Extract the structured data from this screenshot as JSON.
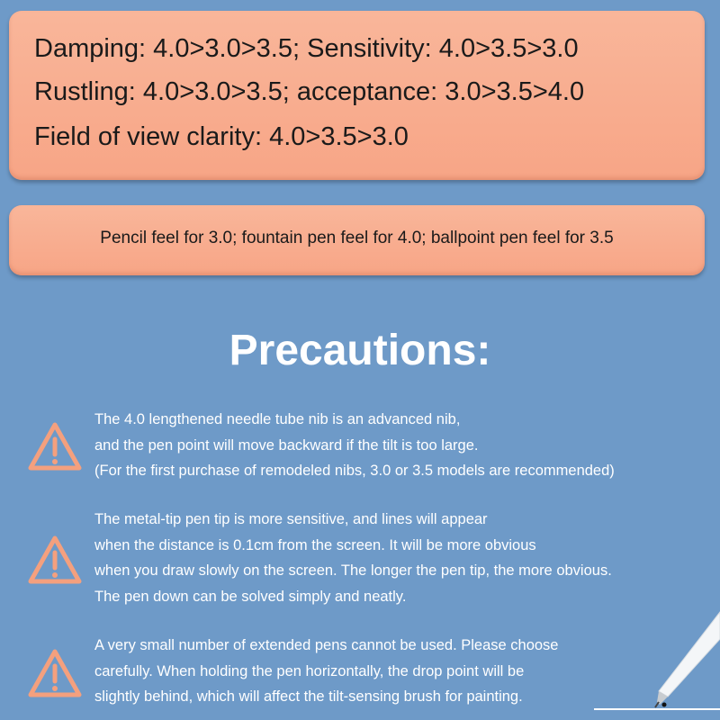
{
  "comparison": {
    "lines": [
      "Damping: 4.0>3.0>3.5; Sensitivity: 4.0>3.5>3.0",
      "Rustling: 4.0>3.0>3.5; acceptance: 3.0>3.5>4.0",
      "Field of view clarity: 4.0>3.5>3.0"
    ]
  },
  "feel": {
    "text": "Pencil feel for 3.0; fountain pen feel for 4.0; ballpoint pen feel for 3.5"
  },
  "precautions": {
    "title": "Precautions:",
    "items": [
      {
        "icon": "warning-icon",
        "lines": [
          "The 4.0 lengthened needle tube nib is an advanced nib,",
          "and the pen point will move backward if the tilt is too large.",
          "(For the first purchase of remodeled nibs, 3.0 or 3.5 models are recommended)"
        ]
      },
      {
        "icon": "warning-icon",
        "lines": [
          "The metal-tip pen tip is more sensitive, and lines will appear",
          "when the distance is 0.1cm from the screen. It will be more obvious",
          "when you draw slowly on the screen. The longer the pen tip, the more obvious.",
          "The pen down can be solved simply and neatly."
        ]
      },
      {
        "icon": "warning-icon",
        "lines": [
          "A very small number of extended pens cannot be used. Please choose",
          "carefully. When holding the pen horizontally, the drop point will be",
          "slightly behind, which will affect the tilt-sensing brush for painting."
        ]
      }
    ]
  },
  "colors": {
    "background": "#6e9ac8",
    "panel": "#f8ad8f",
    "icon": "#f4a07e"
  }
}
